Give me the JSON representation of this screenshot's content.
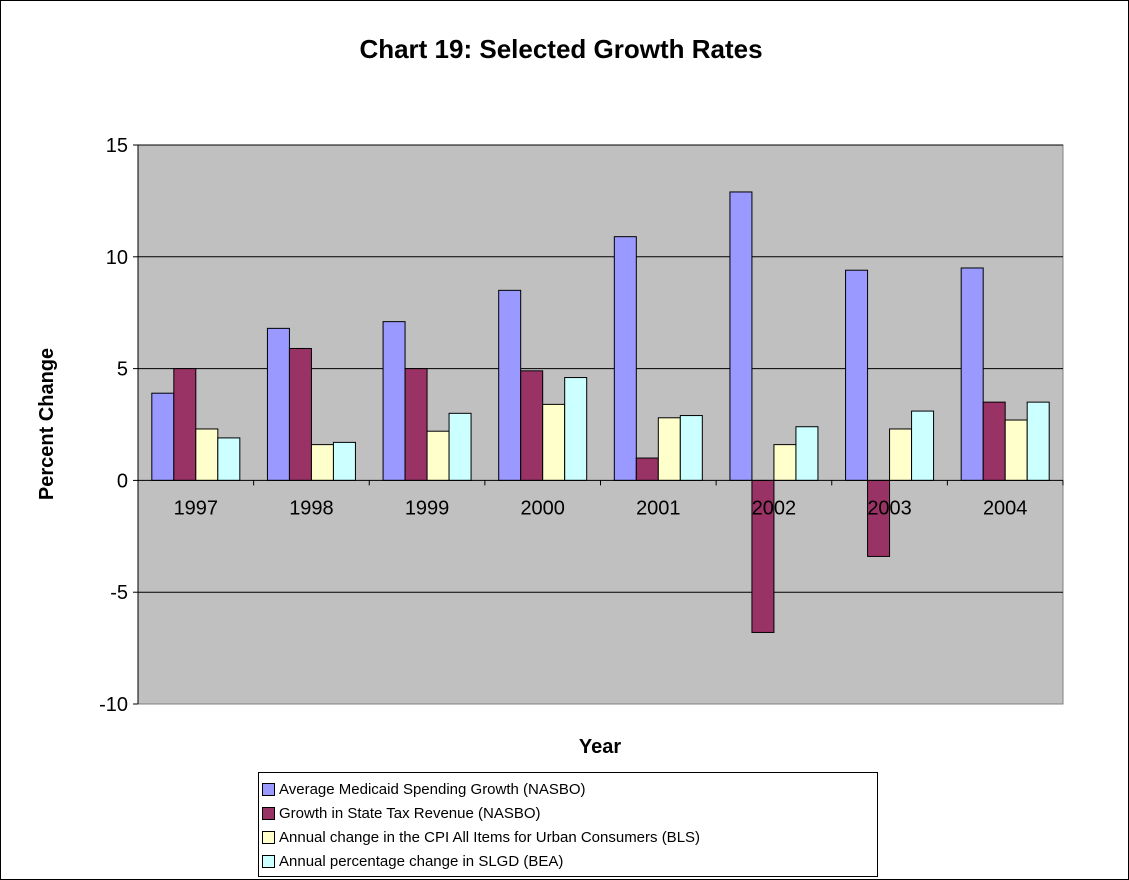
{
  "chart_data": {
    "type": "bar",
    "title": "Chart 19: Selected Growth Rates",
    "xlabel": "Year",
    "ylabel": "Percent Change",
    "categories": [
      "1997",
      "1998",
      "1999",
      "2000",
      "2001",
      "2002",
      "2003",
      "2004"
    ],
    "ylim": [
      -10,
      15
    ],
    "yticks": [
      "-10",
      "-5",
      "0",
      "5",
      "10",
      "15"
    ],
    "grid": true,
    "legend_position": "bottom",
    "plot_background": "#C0C0C0",
    "series": [
      {
        "name": "Average Medicaid Spending Growth (NASBO)",
        "color": "#9999FF",
        "values": [
          3.9,
          6.8,
          7.1,
          8.5,
          10.9,
          12.9,
          9.4,
          9.5
        ]
      },
      {
        "name": "Growth in State Tax Revenue (NASBO)",
        "color": "#993366",
        "values": [
          5.0,
          5.9,
          5.0,
          4.9,
          1.0,
          -6.8,
          -3.4,
          3.5
        ]
      },
      {
        "name": "Annual change in the CPI All Items for Urban Consumers (BLS)",
        "color": "#FFFFCC",
        "values": [
          2.3,
          1.6,
          2.2,
          3.4,
          2.8,
          1.6,
          2.3,
          2.7
        ]
      },
      {
        "name": "Annual percentage change in SLGD (BEA)",
        "color": "#CCFFFF",
        "values": [
          1.9,
          1.7,
          3.0,
          4.6,
          2.9,
          2.4,
          3.1,
          3.5
        ]
      }
    ]
  }
}
